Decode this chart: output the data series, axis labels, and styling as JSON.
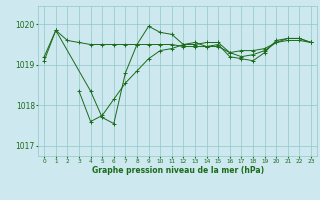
{
  "background_color": "#cde8ee",
  "line_color": "#1a6b1a",
  "grid_color": "#8ec8c8",
  "title": "Graphe pression niveau de la mer (hPa)",
  "xlim": [
    -0.5,
    23.5
  ],
  "ylim": [
    1016.75,
    1020.45
  ],
  "yticks": [
    1017,
    1018,
    1019,
    1020
  ],
  "xticks": [
    0,
    1,
    2,
    3,
    4,
    5,
    6,
    7,
    8,
    9,
    10,
    11,
    12,
    13,
    14,
    15,
    16,
    17,
    18,
    19,
    20,
    21,
    22,
    23
  ],
  "series": [
    {
      "x": [
        0,
        1,
        2,
        3,
        4,
        5,
        6,
        7,
        8,
        9,
        10,
        11,
        12,
        13,
        14,
        15,
        16,
        17,
        18,
        19,
        20,
        21,
        22,
        23
      ],
      "y": [
        1019.2,
        1019.85,
        1019.6,
        1019.55,
        1019.5,
        1019.5,
        1019.5,
        1019.5,
        1019.5,
        1019.5,
        1019.5,
        1019.5,
        1019.45,
        1019.45,
        1019.45,
        1019.45,
        1019.3,
        1019.35,
        1019.35,
        1019.4,
        1019.55,
        1019.6,
        1019.6,
        1019.55
      ]
    },
    {
      "x": [
        0,
        1,
        4,
        5,
        6,
        7,
        8,
        9,
        10,
        11,
        12,
        13,
        14,
        15,
        16,
        17,
        18,
        19,
        20,
        21,
        22,
        23
      ],
      "y": [
        1019.1,
        1019.85,
        1018.35,
        1017.7,
        1017.55,
        1018.8,
        1019.5,
        1019.95,
        1019.8,
        1019.75,
        1019.5,
        1019.55,
        1019.45,
        1019.5,
        1019.2,
        1019.15,
        1019.1,
        1019.3,
        1019.6,
        1019.65,
        1019.65,
        1019.55
      ]
    },
    {
      "x": [
        3,
        4,
        5,
        6,
        7,
        8,
        9,
        10,
        11,
        12,
        13,
        14,
        15,
        16,
        17,
        18,
        19,
        20,
        21,
        22,
        23
      ],
      "y": [
        1018.35,
        1017.6,
        1017.75,
        1018.15,
        1018.55,
        1018.85,
        1019.15,
        1019.35,
        1019.4,
        1019.5,
        1019.5,
        1019.55,
        1019.55,
        1019.3,
        1019.2,
        1019.25,
        1019.35,
        1019.55,
        1019.65,
        1019.65,
        1019.55
      ]
    }
  ]
}
